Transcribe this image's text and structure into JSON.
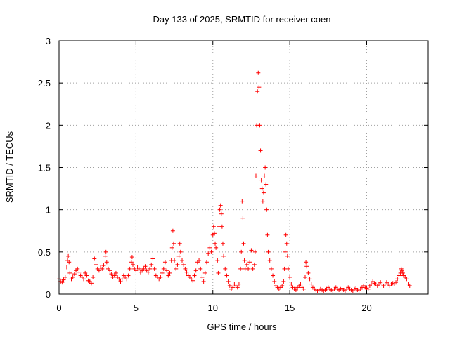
{
  "chart_data": {
    "type": "scatter",
    "title": "Day 133 of 2025, SRMTID for receiver coen",
    "xlabel": "GPS time / hours",
    "ylabel": "SRMTID / TECUs",
    "xlim": [
      0,
      24
    ],
    "ylim": [
      0,
      3
    ],
    "xticks": [
      0,
      5,
      10,
      15,
      20
    ],
    "yticks": [
      0,
      0.5,
      1,
      1.5,
      2,
      2.5,
      3
    ],
    "ytick_labels": [
      "0",
      "0.5",
      "1",
      "1.5",
      "2",
      "2.5",
      "3"
    ],
    "grid": true,
    "marker": "+",
    "color": "#ff0000",
    "series": [
      {
        "name": "SRMTID",
        "points": [
          [
            0.0,
            0.18
          ],
          [
            0.1,
            0.15
          ],
          [
            0.2,
            0.14
          ],
          [
            0.3,
            0.17
          ],
          [
            0.4,
            0.2
          ],
          [
            0.5,
            0.32
          ],
          [
            0.55,
            0.4
          ],
          [
            0.6,
            0.45
          ],
          [
            0.65,
            0.38
          ],
          [
            0.7,
            0.25
          ],
          [
            0.8,
            0.18
          ],
          [
            0.9,
            0.2
          ],
          [
            1.0,
            0.24
          ],
          [
            1.1,
            0.28
          ],
          [
            1.2,
            0.3
          ],
          [
            1.3,
            0.26
          ],
          [
            1.4,
            0.22
          ],
          [
            1.5,
            0.2
          ],
          [
            1.6,
            0.18
          ],
          [
            1.7,
            0.25
          ],
          [
            1.8,
            0.22
          ],
          [
            1.9,
            0.16
          ],
          [
            2.0,
            0.15
          ],
          [
            2.1,
            0.13
          ],
          [
            2.2,
            0.2
          ],
          [
            2.3,
            0.42
          ],
          [
            2.4,
            0.35
          ],
          [
            2.5,
            0.3
          ],
          [
            2.6,
            0.28
          ],
          [
            2.7,
            0.32
          ],
          [
            2.8,
            0.3
          ],
          [
            2.9,
            0.34
          ],
          [
            3.0,
            0.45
          ],
          [
            3.05,
            0.5
          ],
          [
            3.1,
            0.38
          ],
          [
            3.2,
            0.3
          ],
          [
            3.3,
            0.28
          ],
          [
            3.4,
            0.24
          ],
          [
            3.5,
            0.2
          ],
          [
            3.6,
            0.22
          ],
          [
            3.7,
            0.25
          ],
          [
            3.8,
            0.2
          ],
          [
            3.9,
            0.18
          ],
          [
            4.0,
            0.15
          ],
          [
            4.1,
            0.18
          ],
          [
            4.2,
            0.22
          ],
          [
            4.3,
            0.2
          ],
          [
            4.4,
            0.18
          ],
          [
            4.5,
            0.22
          ],
          [
            4.6,
            0.3
          ],
          [
            4.7,
            0.38
          ],
          [
            4.75,
            0.44
          ],
          [
            4.8,
            0.35
          ],
          [
            4.9,
            0.3
          ],
          [
            5.0,
            0.28
          ],
          [
            5.1,
            0.32
          ],
          [
            5.2,
            0.3
          ],
          [
            5.3,
            0.26
          ],
          [
            5.4,
            0.28
          ],
          [
            5.5,
            0.3
          ],
          [
            5.6,
            0.33
          ],
          [
            5.7,
            0.28
          ],
          [
            5.8,
            0.26
          ],
          [
            5.9,
            0.3
          ],
          [
            6.0,
            0.35
          ],
          [
            6.1,
            0.42
          ],
          [
            6.2,
            0.3
          ],
          [
            6.3,
            0.22
          ],
          [
            6.4,
            0.2
          ],
          [
            6.5,
            0.18
          ],
          [
            6.6,
            0.2
          ],
          [
            6.7,
            0.25
          ],
          [
            6.8,
            0.3
          ],
          [
            6.9,
            0.38
          ],
          [
            7.0,
            0.28
          ],
          [
            7.1,
            0.22
          ],
          [
            7.2,
            0.25
          ],
          [
            7.3,
            0.4
          ],
          [
            7.35,
            0.55
          ],
          [
            7.4,
            0.75
          ],
          [
            7.45,
            0.6
          ],
          [
            7.5,
            0.4
          ],
          [
            7.6,
            0.3
          ],
          [
            7.7,
            0.35
          ],
          [
            7.8,
            0.45
          ],
          [
            7.85,
            0.6
          ],
          [
            7.9,
            0.5
          ],
          [
            8.0,
            0.4
          ],
          [
            8.1,
            0.35
          ],
          [
            8.2,
            0.3
          ],
          [
            8.3,
            0.26
          ],
          [
            8.4,
            0.22
          ],
          [
            8.5,
            0.2
          ],
          [
            8.6,
            0.18
          ],
          [
            8.7,
            0.16
          ],
          [
            8.8,
            0.22
          ],
          [
            8.9,
            0.28
          ],
          [
            9.0,
            0.38
          ],
          [
            9.1,
            0.4
          ],
          [
            9.2,
            0.3
          ],
          [
            9.3,
            0.2
          ],
          [
            9.4,
            0.15
          ],
          [
            9.5,
            0.25
          ],
          [
            9.6,
            0.38
          ],
          [
            9.7,
            0.48
          ],
          [
            9.8,
            0.55
          ],
          [
            9.9,
            0.5
          ],
          [
            10.0,
            0.7
          ],
          [
            10.05,
            0.8
          ],
          [
            10.1,
            0.72
          ],
          [
            10.15,
            0.6
          ],
          [
            10.2,
            0.55
          ],
          [
            10.3,
            0.4
          ],
          [
            10.35,
            0.25
          ],
          [
            10.4,
            0.8
          ],
          [
            10.45,
            1.0
          ],
          [
            10.5,
            1.05
          ],
          [
            10.55,
            0.95
          ],
          [
            10.6,
            0.8
          ],
          [
            10.65,
            0.6
          ],
          [
            10.7,
            0.45
          ],
          [
            10.8,
            0.3
          ],
          [
            10.9,
            0.22
          ],
          [
            11.0,
            0.15
          ],
          [
            11.1,
            0.1
          ],
          [
            11.2,
            0.06
          ],
          [
            11.3,
            0.08
          ],
          [
            11.4,
            0.12
          ],
          [
            11.5,
            0.1
          ],
          [
            11.6,
            0.08
          ],
          [
            11.7,
            0.12
          ],
          [
            11.8,
            0.3
          ],
          [
            11.85,
            0.5
          ],
          [
            11.9,
            1.1
          ],
          [
            11.95,
            0.9
          ],
          [
            12.0,
            0.6
          ],
          [
            12.05,
            0.4
          ],
          [
            12.1,
            0.3
          ],
          [
            12.2,
            0.35
          ],
          [
            12.3,
            0.3
          ],
          [
            12.4,
            0.38
          ],
          [
            12.5,
            0.52
          ],
          [
            12.6,
            0.3
          ],
          [
            12.7,
            0.35
          ],
          [
            12.75,
            0.5
          ],
          [
            12.8,
            1.4
          ],
          [
            12.85,
            2.0
          ],
          [
            12.9,
            2.4
          ],
          [
            12.95,
            2.62
          ],
          [
            13.0,
            2.45
          ],
          [
            13.05,
            2.0
          ],
          [
            13.1,
            1.7
          ],
          [
            13.15,
            1.35
          ],
          [
            13.2,
            1.25
          ],
          [
            13.25,
            1.1
          ],
          [
            13.3,
            1.2
          ],
          [
            13.35,
            1.4
          ],
          [
            13.4,
            1.5
          ],
          [
            13.45,
            1.3
          ],
          [
            13.5,
            1.0
          ],
          [
            13.55,
            0.7
          ],
          [
            13.6,
            0.5
          ],
          [
            13.7,
            0.4
          ],
          [
            13.8,
            0.3
          ],
          [
            13.9,
            0.22
          ],
          [
            14.0,
            0.15
          ],
          [
            14.1,
            0.1
          ],
          [
            14.2,
            0.08
          ],
          [
            14.3,
            0.06
          ],
          [
            14.4,
            0.08
          ],
          [
            14.5,
            0.1
          ],
          [
            14.6,
            0.15
          ],
          [
            14.65,
            0.3
          ],
          [
            14.7,
            0.5
          ],
          [
            14.75,
            0.7
          ],
          [
            14.8,
            0.6
          ],
          [
            14.85,
            0.45
          ],
          [
            14.9,
            0.3
          ],
          [
            15.0,
            0.2
          ],
          [
            15.1,
            0.12
          ],
          [
            15.2,
            0.08
          ],
          [
            15.3,
            0.06
          ],
          [
            15.4,
            0.05
          ],
          [
            15.5,
            0.08
          ],
          [
            15.6,
            0.1
          ],
          [
            15.7,
            0.12
          ],
          [
            15.8,
            0.08
          ],
          [
            15.9,
            0.06
          ],
          [
            16.0,
            0.2
          ],
          [
            16.05,
            0.38
          ],
          [
            16.1,
            0.33
          ],
          [
            16.2,
            0.25
          ],
          [
            16.3,
            0.18
          ],
          [
            16.4,
            0.12
          ],
          [
            16.5,
            0.08
          ],
          [
            16.6,
            0.06
          ],
          [
            16.7,
            0.05
          ],
          [
            16.8,
            0.04
          ],
          [
            16.9,
            0.05
          ],
          [
            17.0,
            0.06
          ],
          [
            17.1,
            0.05
          ],
          [
            17.2,
            0.04
          ],
          [
            17.3,
            0.05
          ],
          [
            17.4,
            0.06
          ],
          [
            17.5,
            0.08
          ],
          [
            17.6,
            0.06
          ],
          [
            17.7,
            0.05
          ],
          [
            17.8,
            0.04
          ],
          [
            17.9,
            0.06
          ],
          [
            18.0,
            0.08
          ],
          [
            18.1,
            0.06
          ],
          [
            18.2,
            0.05
          ],
          [
            18.3,
            0.06
          ],
          [
            18.4,
            0.07
          ],
          [
            18.5,
            0.05
          ],
          [
            18.6,
            0.04
          ],
          [
            18.7,
            0.06
          ],
          [
            18.8,
            0.08
          ],
          [
            18.9,
            0.06
          ],
          [
            19.0,
            0.05
          ],
          [
            19.1,
            0.04
          ],
          [
            19.2,
            0.06
          ],
          [
            19.3,
            0.07
          ],
          [
            19.4,
            0.05
          ],
          [
            19.5,
            0.04
          ],
          [
            19.6,
            0.06
          ],
          [
            19.7,
            0.08
          ],
          [
            19.8,
            0.1
          ],
          [
            19.9,
            0.08
          ],
          [
            20.0,
            0.07
          ],
          [
            20.1,
            0.06
          ],
          [
            20.2,
            0.1
          ],
          [
            20.3,
            0.12
          ],
          [
            20.4,
            0.15
          ],
          [
            20.5,
            0.13
          ],
          [
            20.6,
            0.12
          ],
          [
            20.7,
            0.1
          ],
          [
            20.8,
            0.12
          ],
          [
            20.9,
            0.14
          ],
          [
            21.0,
            0.12
          ],
          [
            21.1,
            0.1
          ],
          [
            21.2,
            0.12
          ],
          [
            21.3,
            0.14
          ],
          [
            21.4,
            0.12
          ],
          [
            21.5,
            0.1
          ],
          [
            21.6,
            0.12
          ],
          [
            21.7,
            0.13
          ],
          [
            21.8,
            0.12
          ],
          [
            21.9,
            0.14
          ],
          [
            22.0,
            0.18
          ],
          [
            22.1,
            0.22
          ],
          [
            22.2,
            0.25
          ],
          [
            22.25,
            0.3
          ],
          [
            22.3,
            0.28
          ],
          [
            22.35,
            0.25
          ],
          [
            22.4,
            0.22
          ],
          [
            22.5,
            0.2
          ],
          [
            22.6,
            0.18
          ],
          [
            22.7,
            0.12
          ],
          [
            22.8,
            0.1
          ]
        ]
      }
    ]
  }
}
